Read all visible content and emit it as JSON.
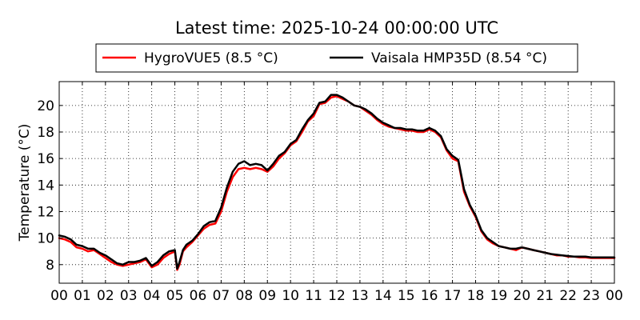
{
  "chart_data": {
    "type": "line",
    "title": "Latest time: 2025-10-24 00:00:00 UTC",
    "xlabel": "",
    "ylabel": "Temperature (°C)",
    "xlim": [
      0,
      24
    ],
    "ylim": [
      6.6,
      21.8
    ],
    "xticks": [
      "00",
      "01",
      "02",
      "03",
      "04",
      "05",
      "06",
      "07",
      "08",
      "09",
      "10",
      "11",
      "12",
      "13",
      "14",
      "15",
      "16",
      "17",
      "18",
      "19",
      "20",
      "21",
      "22",
      "23",
      "00"
    ],
    "yticks": [
      8,
      10,
      12,
      14,
      16,
      18,
      20
    ],
    "grid": true,
    "legend_position": "top-center",
    "x": [
      0,
      0.25,
      0.5,
      0.75,
      1,
      1.25,
      1.5,
      1.75,
      2,
      2.25,
      2.5,
      2.75,
      3,
      3.25,
      3.5,
      3.75,
      4,
      4.25,
      4.5,
      4.75,
      5,
      5.1,
      5.2,
      5.35,
      5.5,
      5.75,
      6,
      6.25,
      6.5,
      6.75,
      7,
      7.25,
      7.5,
      7.75,
      8,
      8.25,
      8.5,
      8.75,
      9,
      9.25,
      9.5,
      9.75,
      10,
      10.25,
      10.5,
      10.75,
      11,
      11.25,
      11.5,
      11.75,
      12,
      12.25,
      12.5,
      12.75,
      13,
      13.25,
      13.5,
      13.75,
      14,
      14.25,
      14.5,
      14.75,
      15,
      15.25,
      15.5,
      15.75,
      16,
      16.25,
      16.5,
      16.75,
      17,
      17.25,
      17.5,
      17.75,
      18,
      18.25,
      18.5,
      18.75,
      19,
      19.25,
      19.5,
      19.75,
      20,
      20.25,
      20.5,
      20.75,
      21,
      21.25,
      21.5,
      21.75,
      22,
      22.25,
      22.5,
      22.75,
      23,
      23.25,
      23.5,
      23.75,
      24
    ],
    "series": [
      {
        "name": "HygroVUE5 (8.5 °C)",
        "color": "#ff0000",
        "values": [
          10.0,
          9.9,
          9.7,
          9.3,
          9.2,
          9.0,
          9.1,
          8.8,
          8.5,
          8.2,
          8.0,
          7.9,
          8.0,
          8.1,
          8.2,
          8.4,
          7.8,
          8.0,
          8.5,
          8.8,
          9.0,
          7.6,
          8.0,
          9.0,
          9.3,
          9.7,
          10.2,
          10.7,
          11.0,
          11.1,
          12.0,
          13.5,
          14.6,
          15.2,
          15.3,
          15.2,
          15.3,
          15.2,
          15.0,
          15.4,
          16.0,
          16.4,
          17.0,
          17.3,
          18.0,
          18.8,
          19.2,
          20.1,
          20.2,
          20.6,
          20.7,
          20.5,
          20.3,
          20.0,
          19.9,
          19.6,
          19.3,
          18.9,
          18.6,
          18.4,
          18.3,
          18.2,
          18.1,
          18.1,
          18.0,
          18.0,
          18.2,
          18.0,
          17.6,
          16.6,
          16.0,
          15.8,
          13.5,
          12.4,
          11.6,
          10.5,
          9.9,
          9.6,
          9.4,
          9.3,
          9.2,
          9.1,
          9.3,
          9.2,
          9.1,
          9.0,
          8.9,
          8.8,
          8.7,
          8.7,
          8.6,
          8.6,
          8.55,
          8.55,
          8.5,
          8.5,
          8.5,
          8.5,
          8.5
        ]
      },
      {
        "name": "Vaisala HMP35D (8.54 °C)",
        "color": "#000000",
        "values": [
          10.2,
          10.1,
          9.9,
          9.5,
          9.4,
          9.2,
          9.2,
          8.9,
          8.7,
          8.4,
          8.1,
          8.0,
          8.2,
          8.2,
          8.3,
          8.5,
          7.9,
          8.2,
          8.7,
          9.0,
          9.1,
          7.7,
          8.2,
          9.1,
          9.5,
          9.8,
          10.3,
          10.9,
          11.2,
          11.3,
          12.3,
          13.8,
          15.0,
          15.6,
          15.8,
          15.5,
          15.6,
          15.5,
          15.1,
          15.6,
          16.2,
          16.5,
          17.1,
          17.4,
          18.2,
          18.9,
          19.4,
          20.2,
          20.3,
          20.8,
          20.8,
          20.6,
          20.3,
          20.0,
          19.9,
          19.7,
          19.4,
          19.0,
          18.7,
          18.5,
          18.3,
          18.3,
          18.2,
          18.2,
          18.1,
          18.1,
          18.3,
          18.1,
          17.7,
          16.7,
          16.2,
          15.9,
          13.7,
          12.5,
          11.7,
          10.6,
          10.0,
          9.7,
          9.4,
          9.3,
          9.2,
          9.2,
          9.3,
          9.2,
          9.1,
          9.0,
          8.9,
          8.8,
          8.75,
          8.7,
          8.65,
          8.6,
          8.6,
          8.6,
          8.55,
          8.55,
          8.55,
          8.55,
          8.54
        ]
      }
    ]
  }
}
